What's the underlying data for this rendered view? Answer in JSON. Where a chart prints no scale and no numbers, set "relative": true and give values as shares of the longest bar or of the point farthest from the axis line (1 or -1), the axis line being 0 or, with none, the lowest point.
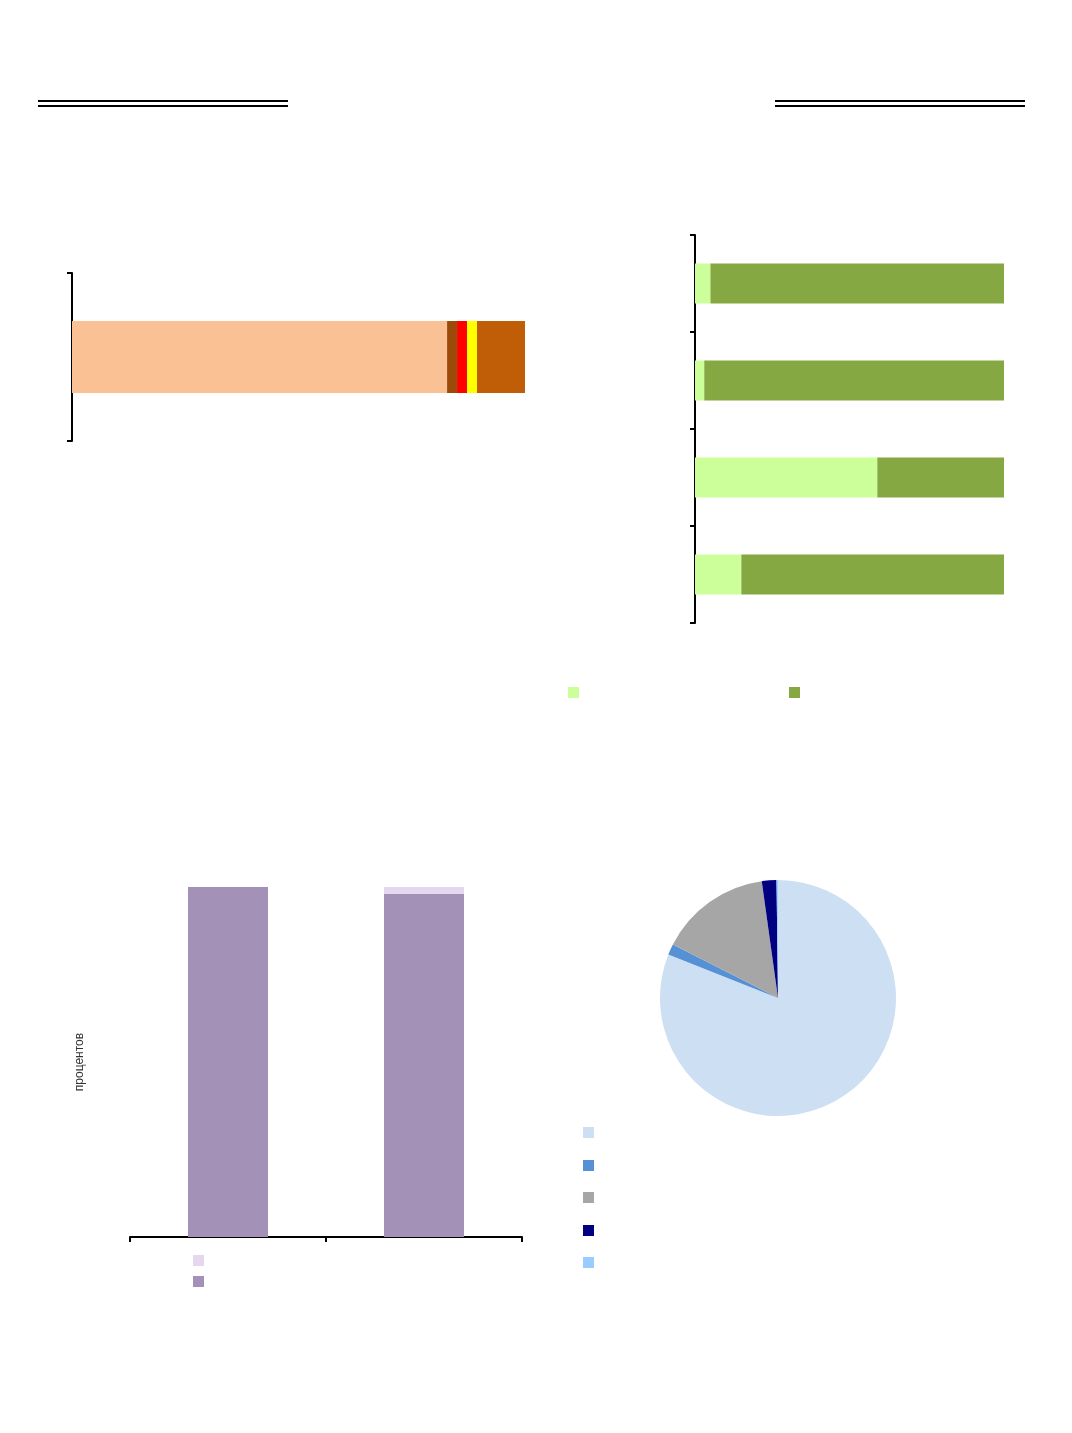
{
  "chart_data": [
    {
      "type": "bar",
      "orientation": "horizontal",
      "stacked": true,
      "relative": true,
      "categories": [
        null
      ],
      "series": [
        {
          "color": "#f9c194",
          "values": [
            0.828
          ]
        },
        {
          "color": "#9c4a0a",
          "values": [
            0.022
          ]
        },
        {
          "color": "#ff0000",
          "values": [
            0.022
          ]
        },
        {
          "color": "#ffff00",
          "values": [
            0.022
          ]
        },
        {
          "color": "#c05e08",
          "values": [
            0.106
          ]
        }
      ]
    },
    {
      "type": "bar",
      "orientation": "horizontal",
      "stacked": true,
      "relative": true,
      "categories": [
        null,
        null,
        null,
        null
      ],
      "series": [
        {
          "color": "#ccff99",
          "values": [
            0.05,
            0.03,
            0.59,
            0.15
          ]
        },
        {
          "color": "#86a843",
          "values": [
            0.95,
            0.97,
            0.41,
            0.85
          ]
        }
      ]
    },
    {
      "type": "bar",
      "stacked": true,
      "relative": true,
      "ylabel": "процентов",
      "categories": [
        null,
        null
      ],
      "series": [
        {
          "color": "#a491b7",
          "values": [
            1,
            0.98
          ]
        },
        {
          "color": "#e4d7ee",
          "values": [
            0,
            0.02
          ]
        }
      ]
    },
    {
      "type": "pie",
      "categories": [
        null,
        null,
        null,
        null,
        null
      ],
      "values": [
        81,
        1.5,
        15.3,
        2,
        0.2
      ],
      "colors": [
        "#cddff3",
        "#5591d4",
        "#a6a6a6",
        "#000080",
        "#99ccff"
      ]
    }
  ]
}
